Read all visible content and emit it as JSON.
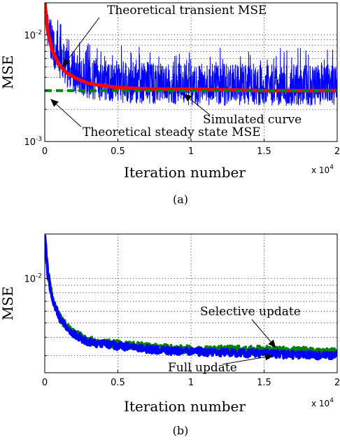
{
  "chart_data": [
    {
      "panel": "(a)",
      "type": "line",
      "xlabel": "Iteration number",
      "ylabel": "MSE",
      "x_multiplier": "x 10",
      "x_multiplier_exp": "4",
      "xlim": [
        0,
        2
      ],
      "ylim": [
        0.001,
        0.02
      ],
      "yscale": "log",
      "xticks": [
        "0",
        "0.5",
        "1",
        "1.5",
        "2"
      ],
      "yticks": [
        {
          "value": 0.01,
          "base": "10",
          "exp": "-2"
        },
        {
          "value": 0.001,
          "base": "10",
          "exp": "-3"
        }
      ],
      "grid": true,
      "series": [
        {
          "role": "simulated",
          "color": "#0000ff",
          "style": "noisy",
          "x": [
            0,
            0.02,
            0.05,
            0.1,
            0.15,
            0.2,
            0.3,
            0.5,
            0.75,
            1.0,
            1.5,
            2.0
          ],
          "y": [
            0.02,
            0.011,
            0.0075,
            0.0055,
            0.0046,
            0.0041,
            0.0036,
            0.0033,
            0.0032,
            0.0031,
            0.0031,
            0.0031
          ],
          "noise_upper": 1.9,
          "noise_lower": 0.7
        },
        {
          "role": "theoretical-transient",
          "color": "#ff0000",
          "style": "solid",
          "x": [
            0,
            0.02,
            0.05,
            0.1,
            0.15,
            0.2,
            0.3,
            0.5,
            0.75,
            1.0,
            1.5,
            2.0
          ],
          "y": [
            0.02,
            0.011,
            0.0072,
            0.0052,
            0.0044,
            0.004,
            0.0035,
            0.0032,
            0.0031,
            0.0031,
            0.003,
            0.003
          ]
        },
        {
          "role": "theoretical-steady",
          "color": "#008000",
          "style": "dashed",
          "x": [
            0,
            2.0
          ],
          "y": [
            0.003,
            0.003
          ]
        }
      ],
      "annotations": [
        {
          "text": "Theoretical transient MSE",
          "target": [
            0.12,
            0.005
          ]
        },
        {
          "text": "Simulated curve",
          "target": [
            0.95,
            0.0028
          ]
        },
        {
          "text": "Theoretical steady state MSE",
          "target": [
            0.04,
            0.0025
          ]
        }
      ],
      "caption": "(a)"
    },
    {
      "panel": "(b)",
      "type": "line",
      "xlabel": "Iteration number",
      "ylabel": "MSE",
      "x_multiplier": "x 10",
      "x_multiplier_exp": "4",
      "xlim": [
        0,
        2
      ],
      "ylim": [
        0.0023,
        0.02
      ],
      "yscale": "log",
      "xticks": [
        "0",
        "0.5",
        "1",
        "1.5",
        "2"
      ],
      "yticks": [
        {
          "value": 0.01,
          "base": "10",
          "exp": "-2"
        }
      ],
      "grid": true,
      "series": [
        {
          "role": "selective",
          "color": "#008000",
          "style": "noisy-thick",
          "x": [
            0,
            0.02,
            0.05,
            0.1,
            0.15,
            0.2,
            0.3,
            0.5,
            0.75,
            1.0,
            1.5,
            2.0
          ],
          "y": [
            0.02,
            0.011,
            0.0075,
            0.0055,
            0.0047,
            0.0043,
            0.0038,
            0.0036,
            0.0034,
            0.0033,
            0.0033,
            0.0032
          ]
        },
        {
          "role": "full",
          "color": "#0000ff",
          "style": "noisy-thick",
          "x": [
            0,
            0.02,
            0.05,
            0.1,
            0.15,
            0.2,
            0.3,
            0.5,
            0.75,
            1.0,
            1.5,
            2.0
          ],
          "y": [
            0.02,
            0.011,
            0.0074,
            0.0054,
            0.0046,
            0.0042,
            0.0037,
            0.0035,
            0.0033,
            0.0032,
            0.0031,
            0.003
          ]
        }
      ],
      "annotations": [
        {
          "text": "Selective update",
          "target": [
            1.58,
            0.0034
          ]
        },
        {
          "text": "Full update",
          "target": [
            1.56,
            0.003
          ]
        }
      ],
      "caption": "(b)"
    }
  ]
}
